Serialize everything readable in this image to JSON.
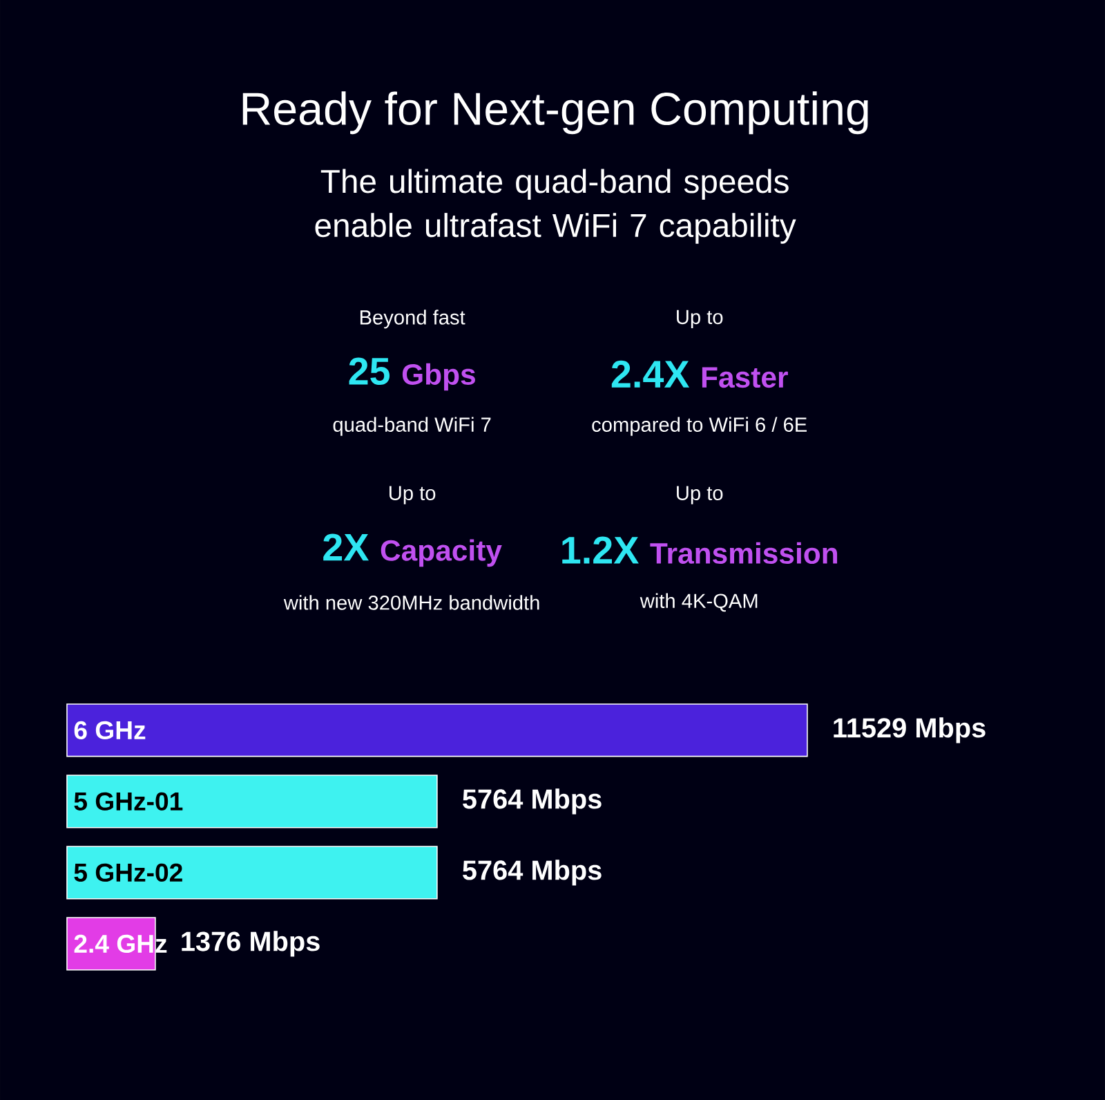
{
  "chart_data": {
    "type": "bar",
    "orientation": "horizontal",
    "title": "Ready for Next-gen Computing",
    "subtitle": "The ultimate quad-band speeds enable ultrafast WiFi 7 capability",
    "categories": [
      "6 GHz",
      "5 GHz-01",
      "5 GHz-02",
      "2.4 GHz"
    ],
    "values": [
      11529,
      5764,
      5764,
      1376
    ],
    "colors": [
      "#4b22dc",
      "#3ef2f0",
      "#3ef2f0",
      "#e23ce6"
    ],
    "value_labels": [
      "11529 Mbps",
      "5764 Mbps",
      "5764 Mbps",
      "1376 Mbps"
    ],
    "annotations": [
      "Beyond fast",
      "25",
      "Gbps",
      "quad-band WiFi 7",
      "Up to",
      "2.4X",
      "Faster",
      "compared to WiFi 6 / 6E",
      "Up to",
      "2X",
      "Capacity",
      "with new 320MHz bandwidth",
      "Up to",
      "1.2X",
      "Transmission",
      "with 4K-QAM"
    ]
  }
}
